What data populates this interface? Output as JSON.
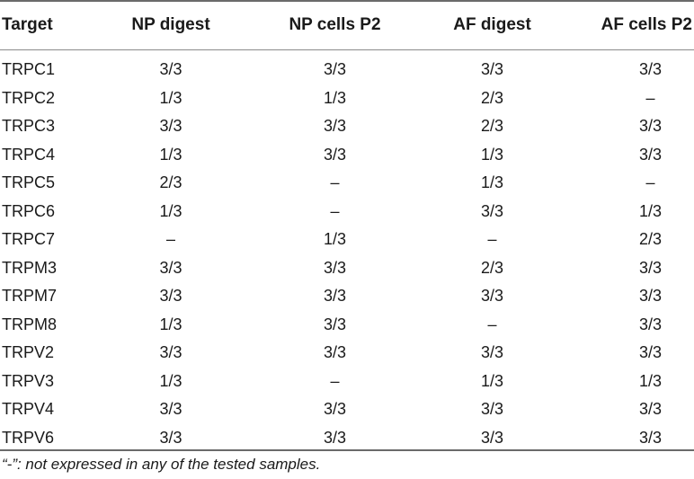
{
  "table": {
    "headers": [
      "Target",
      "NP digest",
      "NP cells P2",
      "AF digest",
      "AF cells P2"
    ],
    "rows": [
      [
        "TRPC1",
        "3/3",
        "3/3",
        "3/3",
        "3/3"
      ],
      [
        "TRPC2",
        "1/3",
        "1/3",
        "2/3",
        "–"
      ],
      [
        "TRPC3",
        "3/3",
        "3/3",
        "2/3",
        "3/3"
      ],
      [
        "TRPC4",
        "1/3",
        "3/3",
        "1/3",
        "3/3"
      ],
      [
        "TRPC5",
        "2/3",
        "–",
        "1/3",
        "–"
      ],
      [
        "TRPC6",
        "1/3",
        "–",
        "3/3",
        "1/3"
      ],
      [
        "TRPC7",
        "–",
        "1/3",
        "–",
        "2/3"
      ],
      [
        "TRPM3",
        "3/3",
        "3/3",
        "2/3",
        "3/3"
      ],
      [
        "TRPM7",
        "3/3",
        "3/3",
        "3/3",
        "3/3"
      ],
      [
        "TRPM8",
        "1/3",
        "3/3",
        "–",
        "3/3"
      ],
      [
        "TRPV2",
        "3/3",
        "3/3",
        "3/3",
        "3/3"
      ],
      [
        "TRPV3",
        "1/3",
        "–",
        "1/3",
        "1/3"
      ],
      [
        "TRPV4",
        "3/3",
        "3/3",
        "3/3",
        "3/3"
      ],
      [
        "TRPV6",
        "3/3",
        "3/3",
        "3/3",
        "3/3"
      ]
    ]
  },
  "footnote": "“-”: not expressed in any of the tested samples."
}
